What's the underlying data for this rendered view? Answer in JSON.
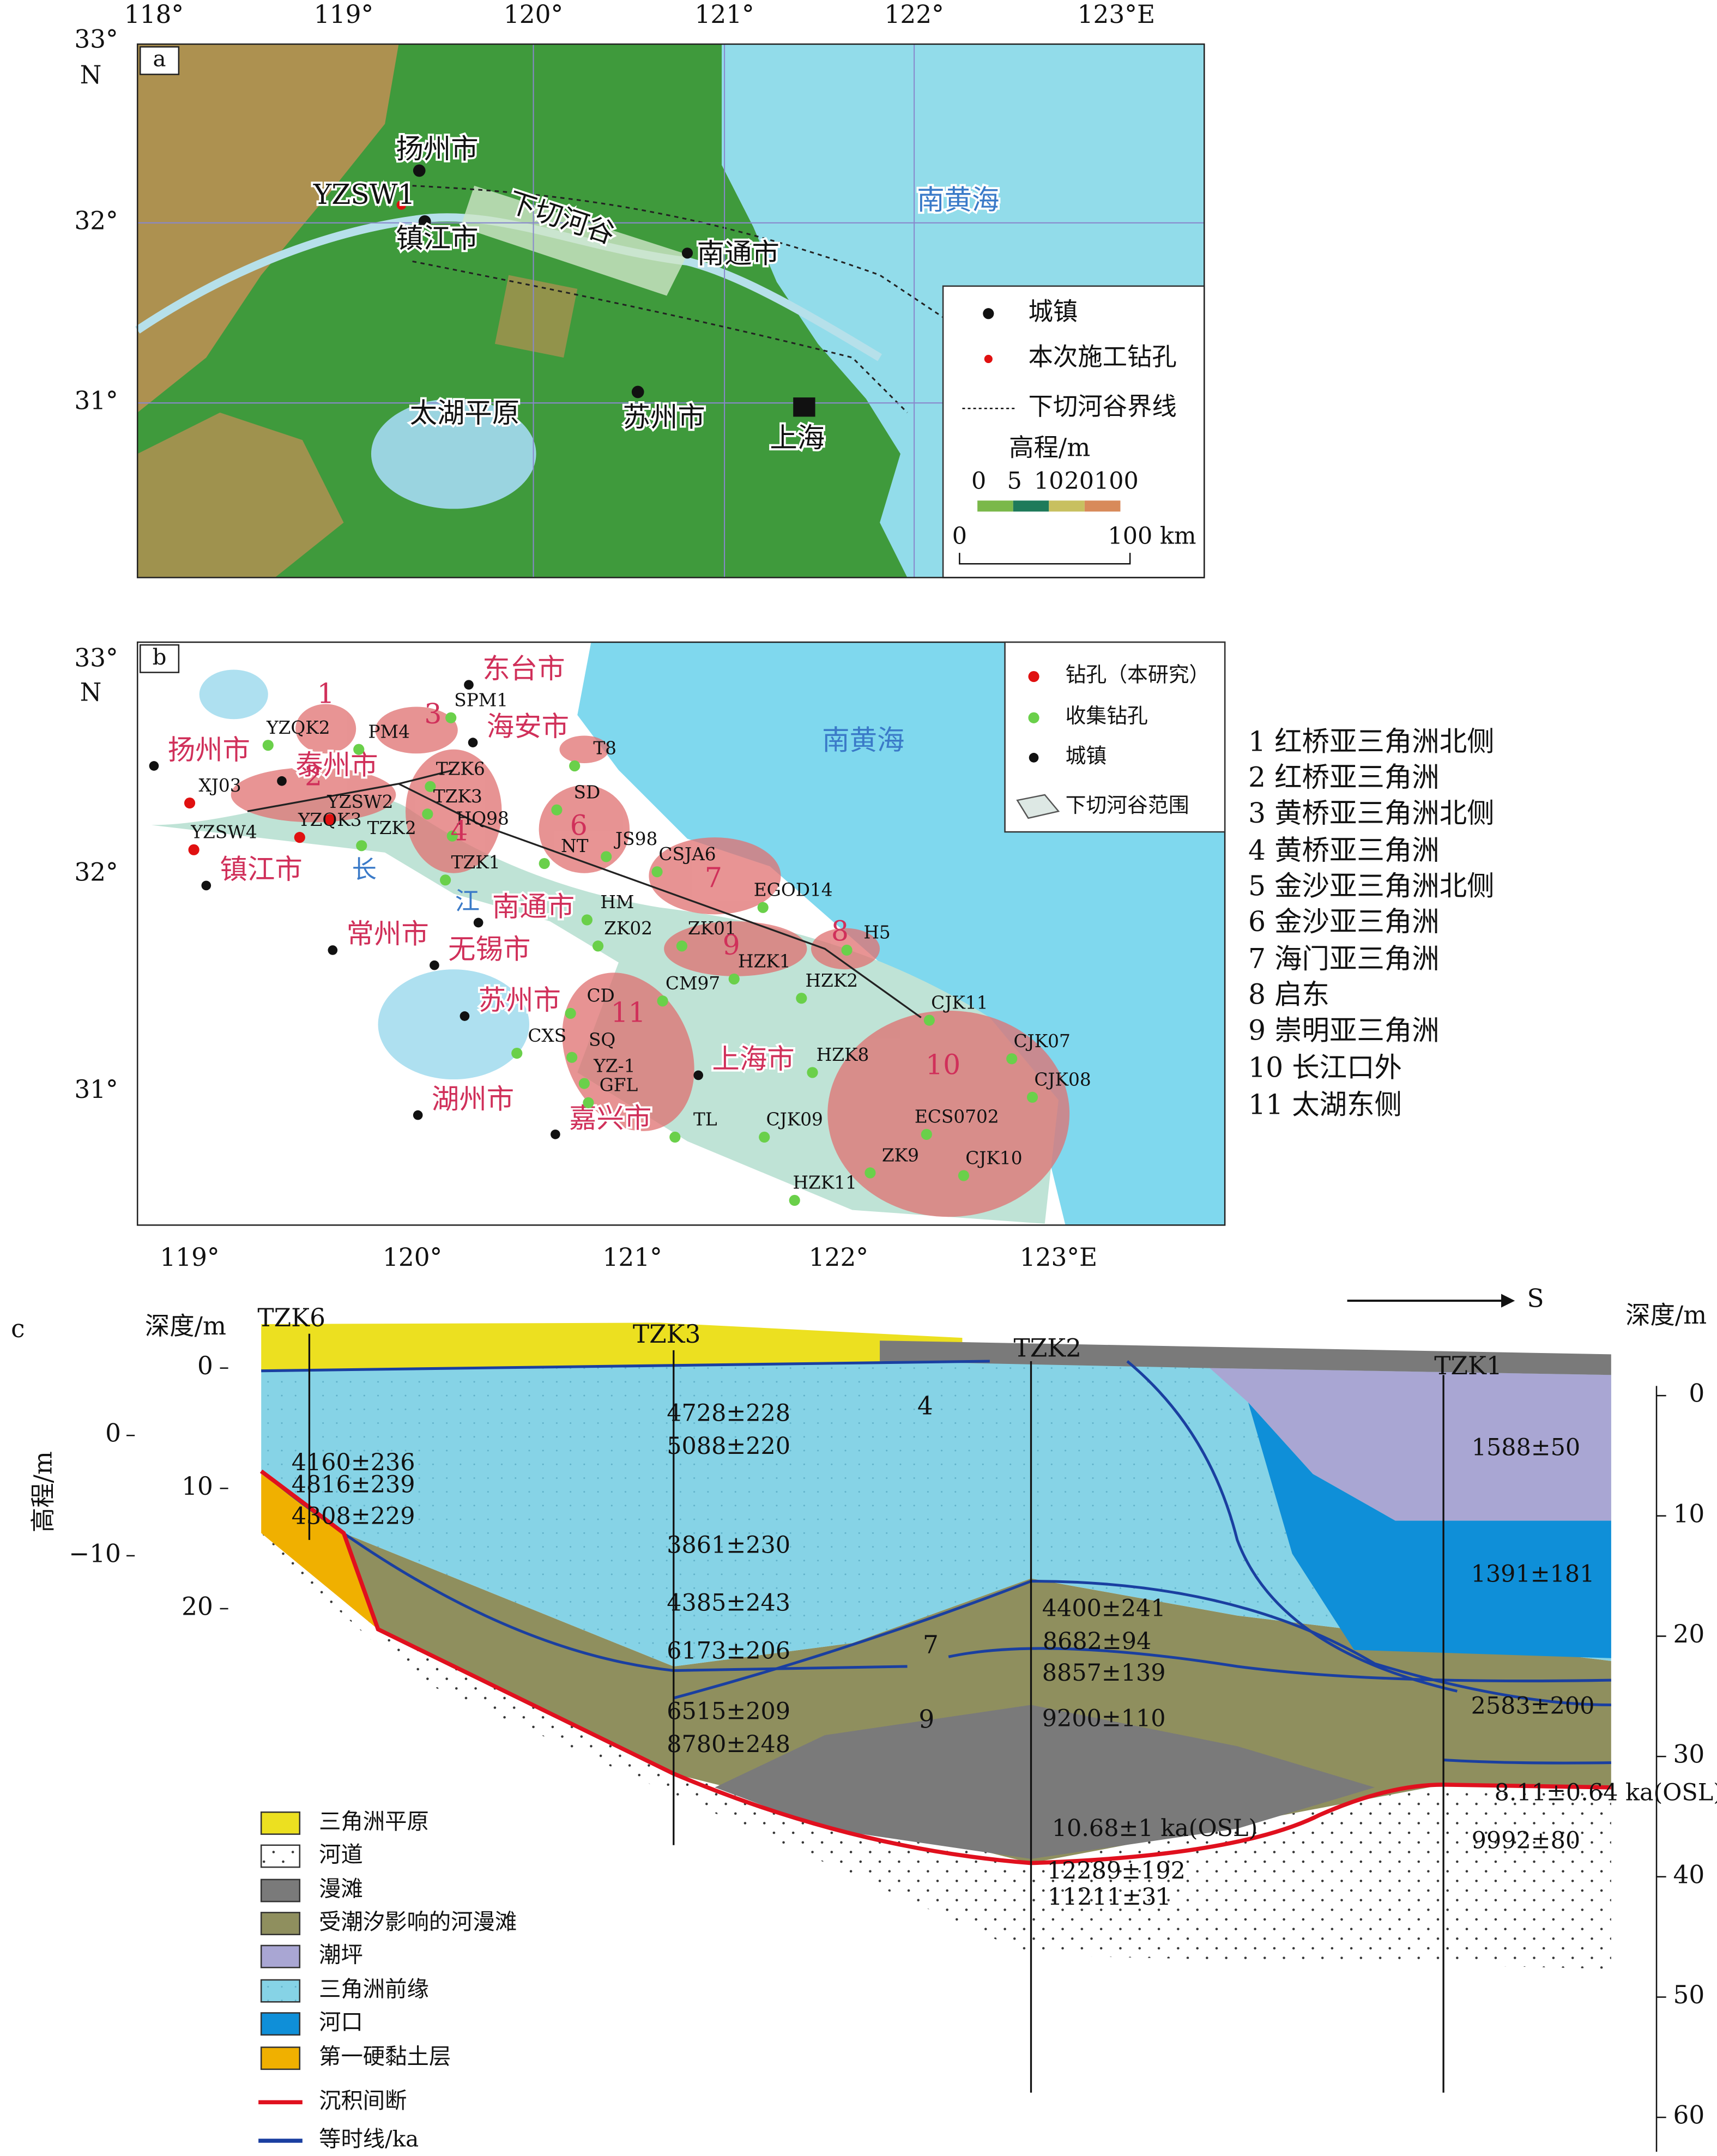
{
  "panel_a": {
    "label": "a",
    "lon_ticks": [
      "118°",
      "119°",
      "120°",
      "121°",
      "122°",
      "123°E"
    ],
    "lat_ticks": [
      "33°",
      "32°",
      "31°"
    ],
    "lat_unit": "N",
    "places": [
      "扬州市",
      "YZSW1",
      "镇江市",
      "下切河谷",
      "南通市",
      "南黄海",
      "太湖平原",
      "苏州市",
      "上海"
    ],
    "legend": [
      "城镇",
      "本次施工钻孔",
      "下切河谷界线"
    ],
    "elevation_title": "高程/m",
    "elevation_labels": [
      "0",
      "5",
      "10",
      "20",
      "100"
    ],
    "scale_labels": [
      "0",
      "100 km"
    ]
  },
  "panel_b": {
    "label": "b",
    "lon_ticks": [
      "119°",
      "120°",
      "121°",
      "122°",
      "123°E"
    ],
    "lat_ticks": [
      "33°",
      "32°",
      "31°"
    ],
    "lat_unit": "N",
    "cities": [
      "东台市",
      "海安市",
      "扬州市",
      "泰州市",
      "镇江市",
      "常州市",
      "无锡市",
      "南通市",
      "苏州市",
      "上海市",
      "湖州市",
      "嘉兴市"
    ],
    "sea": "南黄海",
    "river": [
      "长",
      "江"
    ],
    "boreholes": [
      "YZQK2",
      "PM4",
      "SPM1",
      "XJ03",
      "YZSW2",
      "YZQK3",
      "YZSW4",
      "TZK2",
      "TZK6",
      "TZK3",
      "HQ98",
      "TZK1",
      "T8",
      "SD",
      "NT",
      "JS98",
      "CSJA6",
      "HM",
      "ZK02",
      "EGOD14",
      "ZK01",
      "HZK1",
      "CM97",
      "HZK2",
      "H5",
      "CJK11",
      "CJK07",
      "CJK08",
      "HZK8",
      "ECS0702",
      "ZK9",
      "CJK10",
      "CJK09",
      "HZK11",
      "TL",
      "CD",
      "CXS",
      "SQ",
      "YZ-1",
      "GFL"
    ],
    "region_numbers": [
      "1",
      "2",
      "3",
      "4",
      "6",
      "7",
      "8",
      "9",
      "10",
      "11"
    ],
    "legend": [
      "钻孔（本研究）",
      "收集钻孔",
      "城镇",
      "下切河谷范围"
    ],
    "regions": [
      "1 红桥亚三角洲北侧",
      "2 红桥亚三角洲",
      "3 黄桥亚三角洲北侧",
      "4 黄桥亚三角洲",
      "5 金沙亚三角洲北侧",
      "6 金沙亚三角洲",
      "7 海门亚三角洲",
      "8 启东",
      "9 崇明亚三角洲",
      "10 长江口外",
      "11 太湖东侧"
    ]
  },
  "panel_c": {
    "label": "c",
    "direction": "S",
    "depth_title": "深度/m",
    "elevation_title": "高程/m",
    "right_title": "深度/m",
    "depth_ticks_left": [
      0,
      10,
      20
    ],
    "elevation_ticks": [
      0,
      {
        "value": -10,
        "label": "−10"
      }
    ],
    "depth_ticks_right": [
      0,
      10,
      20,
      30,
      40,
      50,
      60
    ],
    "boreholes": [
      "TZK6",
      "TZK3",
      "TZK2",
      "TZK1"
    ],
    "ages": [
      "4160±236",
      "4816±239",
      "4308±229",
      "4728±228",
      "5088±220",
      "3861±230",
      "4385±243",
      "6173±206",
      "6515±209",
      "8780±248",
      "4400±241",
      "8682±94",
      "8857±139",
      "9200±110",
      "10.68±1 ka(OSL)",
      "12289±192",
      "11211±31",
      "1588±50",
      "1391±181",
      "2583±200",
      "8.11±0.64 ka(OSL)",
      "9992±80"
    ],
    "units": [
      "4",
      "7",
      "9"
    ],
    "legend": [
      "三角洲平原",
      "河道",
      "漫滩",
      "受潮汐影响的河漫滩",
      "潮坪",
      "三角洲前缘",
      "河口",
      "第一硬黏土层",
      "沉积间断",
      "等时线/ka"
    ]
  }
}
